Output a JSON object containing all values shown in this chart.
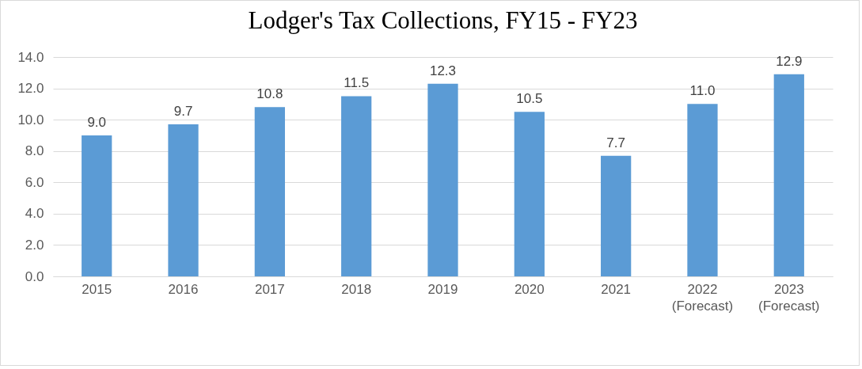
{
  "chart_data": {
    "type": "bar",
    "title": "Lodger's Tax Collections, FY15 - FY23",
    "categories": [
      "2015",
      "2016",
      "2017",
      "2018",
      "2019",
      "2020",
      "2021",
      "2022\n(Forecast)",
      "2023\n(Forecast)"
    ],
    "values": [
      9.0,
      9.7,
      10.8,
      11.5,
      12.3,
      10.5,
      7.7,
      11.0,
      12.9
    ],
    "value_labels": [
      "9.0",
      "9.7",
      "10.8",
      "11.5",
      "12.3",
      "10.5",
      "7.7",
      "11.0",
      "12.9"
    ],
    "color": "#5b9bd5",
    "ylim": [
      0,
      14
    ],
    "yticks": [
      {
        "value": 0,
        "label": "0.0"
      },
      {
        "value": 2,
        "label": "2.0"
      },
      {
        "value": 4,
        "label": "4.0"
      },
      {
        "value": 6,
        "label": "6.0"
      },
      {
        "value": 8,
        "label": "8.0"
      },
      {
        "value": 10,
        "label": "10.0"
      },
      {
        "value": 12,
        "label": "12.0"
      },
      {
        "value": 14,
        "label": "14.0"
      }
    ],
    "grid": "y"
  }
}
